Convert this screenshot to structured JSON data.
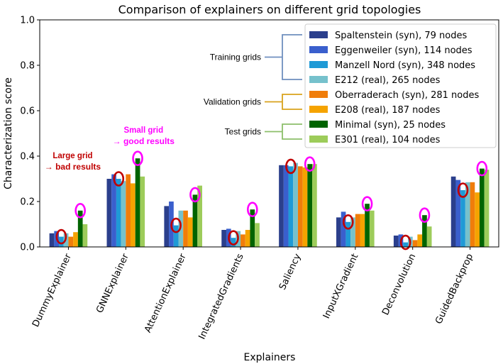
{
  "chart_data": {
    "type": "bar",
    "title": "Comparison of explainers on different grid topologies",
    "xlabel": "Explainers",
    "ylabel": "Characterization score",
    "ylim": [
      0,
      1.0
    ],
    "yticks": [
      "0.0",
      "0.2",
      "0.4",
      "0.6",
      "0.8",
      "1.0"
    ],
    "grid": false,
    "legend_position": "top-right",
    "categories": [
      "DummyExplainer",
      "GNNExplainer",
      "AttentionExplainer",
      "IntegratedGradients",
      "Saliency",
      "InputXGradient",
      "Deconvolution",
      "GuidedBackprop"
    ],
    "series": [
      {
        "name": "Spaltenstein (syn), 79 nodes",
        "color": "#2b3f8c",
        "values": [
          0.06,
          0.3,
          0.18,
          0.075,
          0.36,
          0.13,
          0.05,
          0.31
        ]
      },
      {
        "name": "Eggenweiler (syn), 114 nodes",
        "color": "#3a5fcd",
        "values": [
          0.07,
          0.32,
          0.2,
          0.08,
          0.36,
          0.155,
          0.055,
          0.295
        ]
      },
      {
        "name": "Manzell Nord (syn), 348 nodes",
        "color": "#1f9ad6",
        "values": [
          0.045,
          0.3,
          0.095,
          0.04,
          0.355,
          0.11,
          0.02,
          0.25
        ]
      },
      {
        "name": "E212 (real), 265 nodes",
        "color": "#76c1cc",
        "values": [
          0.06,
          0.29,
          0.16,
          0.07,
          0.37,
          0.13,
          0.045,
          0.285
        ]
      },
      {
        "name": "Oberraderach (syn), 281 nodes",
        "color": "#f07d0a",
        "values": [
          0.045,
          0.32,
          0.16,
          0.055,
          0.355,
          0.145,
          0.03,
          0.285
        ]
      },
      {
        "name": "E208 (real), 187 nodes",
        "color": "#f5a300",
        "values": [
          0.065,
          0.28,
          0.13,
          0.075,
          0.35,
          0.145,
          0.055,
          0.24
        ]
      },
      {
        "name": "Minimal (syn), 25 nodes",
        "color": "#006400",
        "values": [
          0.16,
          0.39,
          0.23,
          0.165,
          0.365,
          0.19,
          0.14,
          0.345
        ]
      },
      {
        "name": "E301 (real), 104 nodes",
        "color": "#9dcc5a",
        "values": [
          0.1,
          0.31,
          0.27,
          0.105,
          0.365,
          0.16,
          0.09,
          0.34
        ]
      }
    ],
    "legend_groups": [
      {
        "label": "Training grids",
        "color": "#6f8fbf",
        "series": [
          0,
          1,
          2,
          3
        ]
      },
      {
        "label": "Validation grids",
        "color": "#d9a21c",
        "series": [
          4,
          5
        ]
      },
      {
        "label": "Test grids",
        "color": "#8cbf6a",
        "series": [
          6,
          7
        ]
      }
    ],
    "highlights": {
      "red_series": 2,
      "magenta_series": 6,
      "red_color": "#c00000",
      "magenta_color": "#ff00ff"
    },
    "annotations": [
      {
        "line1": "Large grid",
        "line2": "→ bad results",
        "color": "#c00000",
        "category": 0
      },
      {
        "line1": "Small grid",
        "line2": "→ good results",
        "color": "#ff00ff",
        "category": 1
      }
    ]
  }
}
